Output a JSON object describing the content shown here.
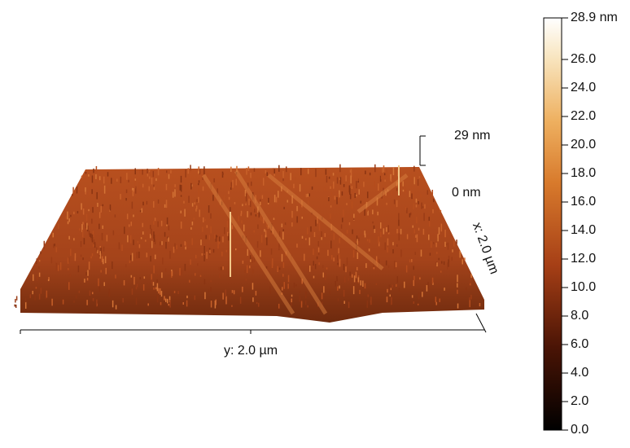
{
  "surface": {
    "z_top_label": "29 nm",
    "z_bottom_label": "0 nm",
    "y_axis_label": "y: 2.0 µm",
    "x_axis_label": "x: 2.0 µm"
  },
  "colorbar": {
    "max_label": "28.9 nm",
    "ticks": [
      "0.0",
      "2.0",
      "4.0",
      "6.0",
      "8.0",
      "10.0",
      "12.0",
      "14.0",
      "16.0",
      "18.0",
      "20.0",
      "22.0",
      "24.0",
      "26.0"
    ]
  }
}
